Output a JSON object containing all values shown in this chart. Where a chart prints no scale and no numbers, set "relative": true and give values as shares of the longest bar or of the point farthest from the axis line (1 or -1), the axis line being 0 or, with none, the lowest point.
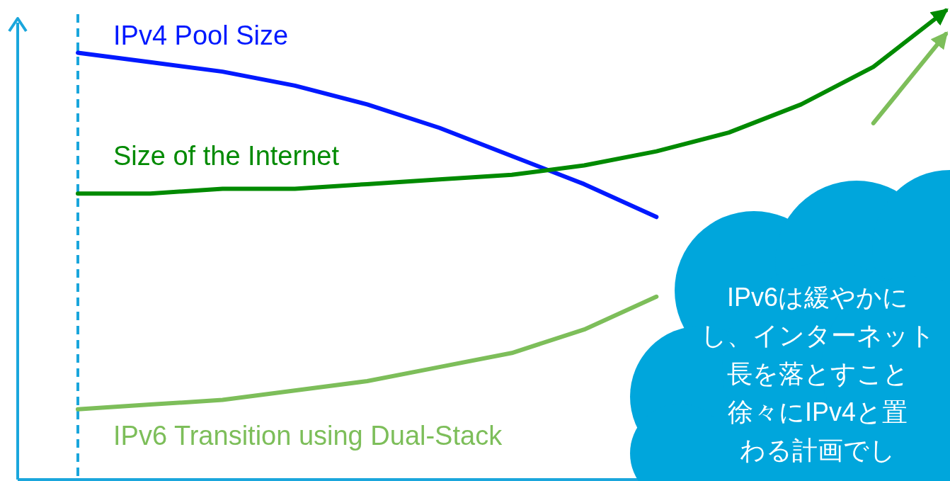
{
  "chart_data": {
    "type": "line",
    "relative": true,
    "marker": "none",
    "line_style": "solid",
    "categories": [
      null,
      null,
      null,
      null,
      null,
      null,
      null,
      null,
      null,
      null,
      null,
      null,
      null
    ],
    "series": [
      {
        "name": "IPv4 Pool Size",
        "color": "#0019ff",
        "values": [
          0.91,
          0.89,
          0.87,
          0.84,
          0.8,
          0.75,
          0.69,
          0.63,
          0.56,
          null,
          null,
          null,
          null
        ]
      },
      {
        "name": "Size of the Internet",
        "color": "#008a00",
        "values": [
          0.61,
          0.61,
          0.62,
          0.62,
          0.63,
          0.64,
          0.65,
          0.67,
          0.7,
          0.74,
          0.8,
          0.88,
          1.0
        ]
      },
      {
        "name": "IPv6 Transition using Dual-Stack",
        "color": "#7dbe5a",
        "values": [
          0.15,
          0.16,
          0.17,
          0.19,
          0.21,
          0.24,
          0.27,
          0.32,
          0.39,
          null,
          null,
          0.76,
          0.95
        ]
      }
    ],
    "annotations": [
      "IPv6は緩やかに",
      "し、インターネット",
      "長を落とすこと",
      "徐々にIPv4と置",
      "わる計画でし"
    ]
  }
}
